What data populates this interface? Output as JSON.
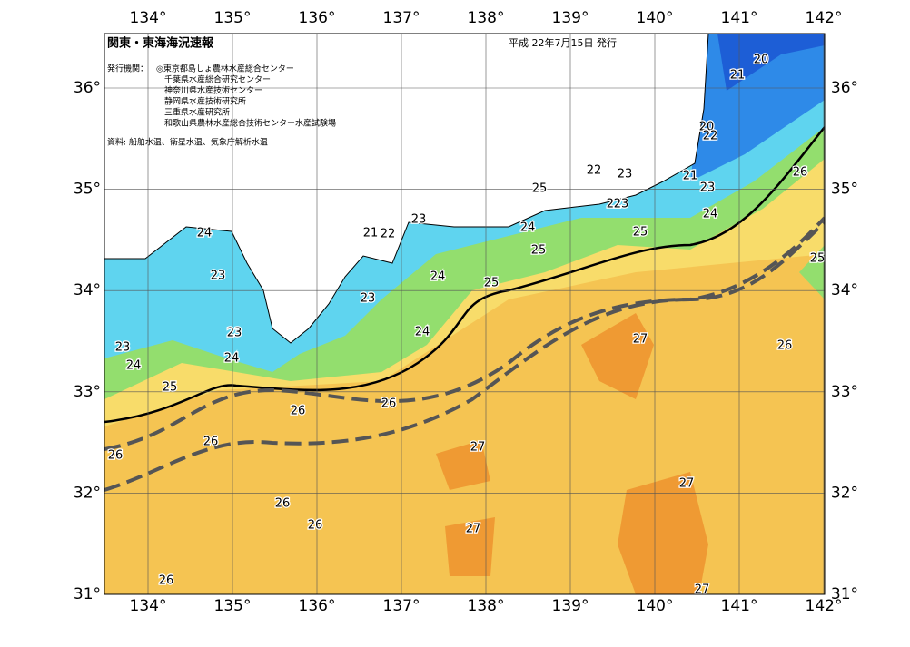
{
  "header": {
    "title": "関東・東海海況速報",
    "date": "平成 22年7月15日 発行"
  },
  "issuers": {
    "label": "発行機関：",
    "items": [
      "◎東京都島しょ農林水産総合センター",
      "千葉県水産総合研究センター",
      "神奈川県水産技術センター",
      "静岡県水産技術研究所",
      "三重県水産研究所",
      "和歌山県農林水産総合技術センター水産試験場"
    ]
  },
  "source": "資料: 船舶水温、衛星水温、気象庁解析水温",
  "map": {
    "lon_labels": [
      "134°",
      "135°",
      "136°",
      "137°",
      "138°",
      "139°",
      "140°",
      "141°",
      "142°"
    ],
    "lat_labels": [
      "36°",
      "35°",
      "34°",
      "33°",
      "32°",
      "31°"
    ],
    "contour_labels": [
      "24",
      "23",
      "23",
      "24",
      "23",
      "24",
      "25",
      "26",
      "26",
      "26",
      "26",
      "26",
      "26",
      "26",
      "23",
      "21",
      "22",
      "23",
      "24",
      "24",
      "25",
      "24",
      "25",
      "25",
      "22",
      "23",
      "22",
      "23",
      "25",
      "21",
      "23",
      "24",
      "20",
      "22",
      "21",
      "20",
      "26",
      "25",
      "26",
      "27",
      "27",
      "27",
      "27",
      "27"
    ]
  }
}
